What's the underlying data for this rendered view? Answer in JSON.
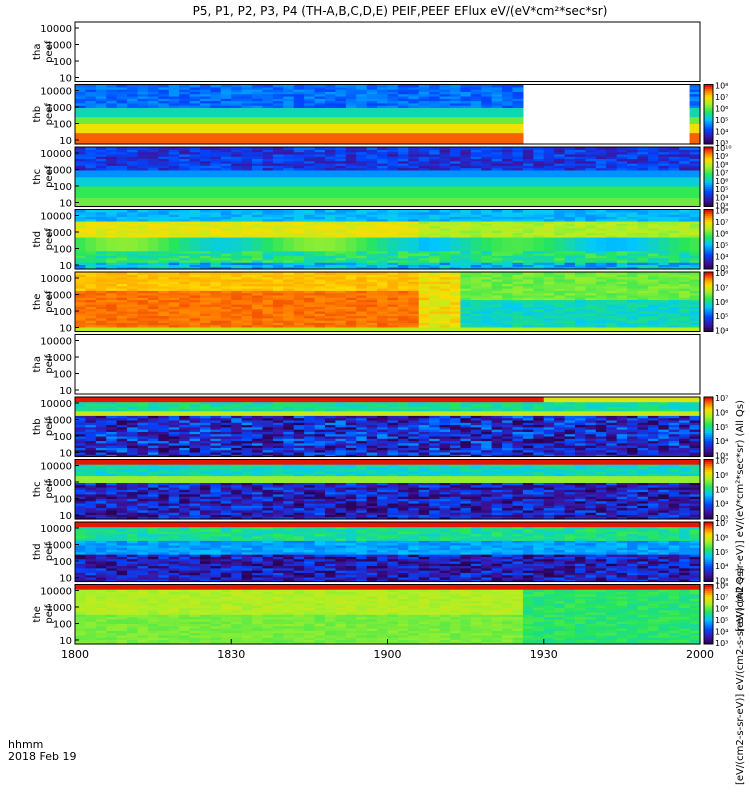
{
  "chart_data": {
    "type": "heatmap",
    "title": "P5, P1, P2, P3, P4 (TH-A,B,C,D,E) PEIF,PEEF EFlux eV/(eV*cm²*sec*sr)",
    "x_ticks": [
      "1800",
      "1830",
      "1900",
      "1930",
      "2000"
    ],
    "x_range": [
      1800,
      2000
    ],
    "x_corner_label": "hhmm",
    "date_label": "2018 Feb 19",
    "y_ticks": [
      "10000",
      "1000",
      "100",
      "10"
    ],
    "y_scale": "log",
    "y_range": [
      5,
      30000
    ],
    "panels": [
      {
        "probe": "tha",
        "product": "peef",
        "empty": true,
        "colorbar": false
      },
      {
        "probe": "thb",
        "product": "peef",
        "empty": false,
        "colorbar": true,
        "pattern": "electron_b",
        "cb_min": 3,
        "cb_max": 8
      },
      {
        "probe": "thc",
        "product": "peef",
        "empty": false,
        "colorbar": true,
        "pattern": "electron_c",
        "cb_min": 3,
        "cb_max": 10
      },
      {
        "probe": "thd",
        "product": "peef",
        "empty": false,
        "colorbar": true,
        "pattern": "electron_d",
        "cb_min": 3,
        "cb_max": 8
      },
      {
        "probe": "the",
        "product": "peef",
        "empty": false,
        "colorbar": true,
        "pattern": "electron_e",
        "cb_min": 4,
        "cb_max": 8
      },
      {
        "probe": "tha",
        "product": "peif",
        "empty": true,
        "colorbar": false
      },
      {
        "probe": "thb",
        "product": "peif",
        "empty": false,
        "colorbar": true,
        "pattern": "ion_b",
        "cb_min": 3,
        "cb_max": 7
      },
      {
        "probe": "thc",
        "product": "peif",
        "empty": false,
        "colorbar": true,
        "pattern": "ion_c",
        "cb_min": 3,
        "cb_max": 7
      },
      {
        "probe": "thd",
        "product": "peif",
        "empty": false,
        "colorbar": true,
        "pattern": "ion_d",
        "cb_min": 3,
        "cb_max": 7
      },
      {
        "probe": "the",
        "product": "peif",
        "empty": false,
        "colorbar": true,
        "pattern": "ion_e",
        "cb_min": 3,
        "cb_max": 8
      }
    ],
    "colorbar_label_electron": "[eV/(cm2-s-sr-eV)] eV/(eV*cm²*sec*sr) (All Qs)",
    "colorbar_label_ion": "[eV/(cm2-s-sr-eV)] eV/(cm2-s-sr-eV) (All Qs)",
    "colors": {
      "low": "#3a1a8a",
      "mid_low": "#1f7fff",
      "mid": "#39e85a",
      "mid_high": "#ffd21a",
      "high": "#ff2a00",
      "max": "#c00000"
    }
  }
}
